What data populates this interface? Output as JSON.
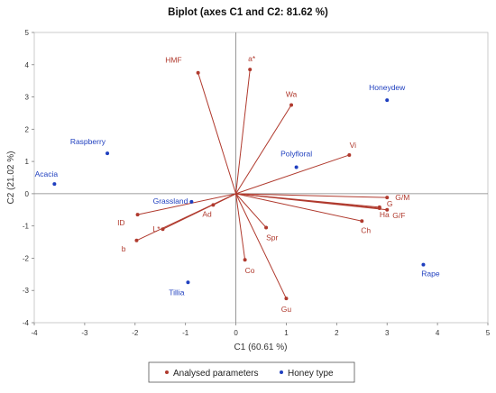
{
  "chart_data": {
    "type": "scatter",
    "title": "Biplot (axes C1 and C2: 81.62 %)",
    "xlabel": "C1 (60.61 %)",
    "ylabel": "C2 (21.02 %)",
    "xlim": [
      -4,
      5
    ],
    "ylim": [
      -4,
      5
    ],
    "xticks": [
      -4,
      -3,
      -2,
      -1,
      0,
      1,
      2,
      3,
      4,
      5
    ],
    "yticks": [
      -4,
      -3,
      -2,
      -1,
      0,
      1,
      2,
      3,
      4,
      5
    ],
    "grid": false,
    "legend_position": "bottom-center",
    "series": [
      {
        "name": "Analysed parameters",
        "color": "#b03a2e",
        "marker": "point-with-vector",
        "points": [
          {
            "label": "HMF",
            "x": -0.75,
            "y": 3.75
          },
          {
            "label": "a*",
            "x": 0.28,
            "y": 3.85
          },
          {
            "label": "Wa",
            "x": 1.1,
            "y": 2.75
          },
          {
            "label": "Vi",
            "x": 2.25,
            "y": 1.2
          },
          {
            "label": "G/M",
            "x": 3.0,
            "y": -0.12
          },
          {
            "label": "G",
            "x": 2.85,
            "y": -0.45
          },
          {
            "label": "G/F",
            "x": 3.0,
            "y": -0.5
          },
          {
            "label": "Ha",
            "x": 2.85,
            "y": -0.42
          },
          {
            "label": "Ch",
            "x": 2.5,
            "y": -0.85
          },
          {
            "label": "Ad",
            "x": -0.45,
            "y": -0.35
          },
          {
            "label": "ID",
            "x": -1.95,
            "y": -0.65
          },
          {
            "label": "L*",
            "x": -1.45,
            "y": -1.1
          },
          {
            "label": "b",
            "x": -1.97,
            "y": -1.45
          },
          {
            "label": "Spr",
            "x": 0.6,
            "y": -1.05
          },
          {
            "label": "Co",
            "x": 0.18,
            "y": -2.05
          },
          {
            "label": "Gu",
            "x": 1.0,
            "y": -3.25
          }
        ]
      },
      {
        "name": "Honey type",
        "color": "#1f3fbf",
        "marker": "point",
        "points": [
          {
            "label": "Honeydew",
            "x": 3.0,
            "y": 2.9
          },
          {
            "label": "Polyfloral",
            "x": 1.2,
            "y": 0.82
          },
          {
            "label": "Raspberry",
            "x": -2.55,
            "y": 1.25
          },
          {
            "label": "Acacia",
            "x": -3.6,
            "y": 0.3
          },
          {
            "label": "Grassland",
            "x": -0.88,
            "y": -0.25
          },
          {
            "label": "Tillia",
            "x": -0.95,
            "y": -2.75
          },
          {
            "label": "Rape",
            "x": 3.72,
            "y": -2.2
          }
        ]
      }
    ]
  }
}
